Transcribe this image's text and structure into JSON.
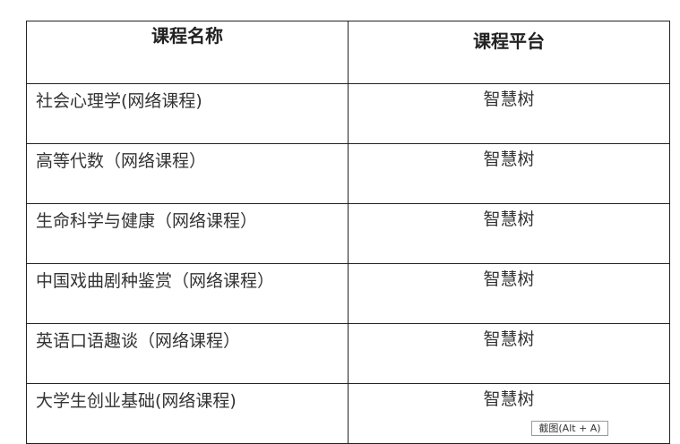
{
  "table": {
    "headers": [
      "课程名称",
      "课程平台"
    ],
    "rows": [
      {
        "name": "社会心理学(网络课程)",
        "platform": "智慧树"
      },
      {
        "name": "高等代数（网络课程）",
        "platform": "智慧树"
      },
      {
        "name": "生命科学与健康（网络课程）",
        "platform": "智慧树"
      },
      {
        "name": "中国戏曲剧种鉴赏（网络课程）",
        "platform": "智慧树"
      },
      {
        "name": "英语口语趣谈（网络课程）",
        "platform": "智慧树"
      },
      {
        "name": "大学生创业基础(网络课程)",
        "platform": "智慧树"
      }
    ]
  },
  "tooltip": "截图(Alt + A)"
}
